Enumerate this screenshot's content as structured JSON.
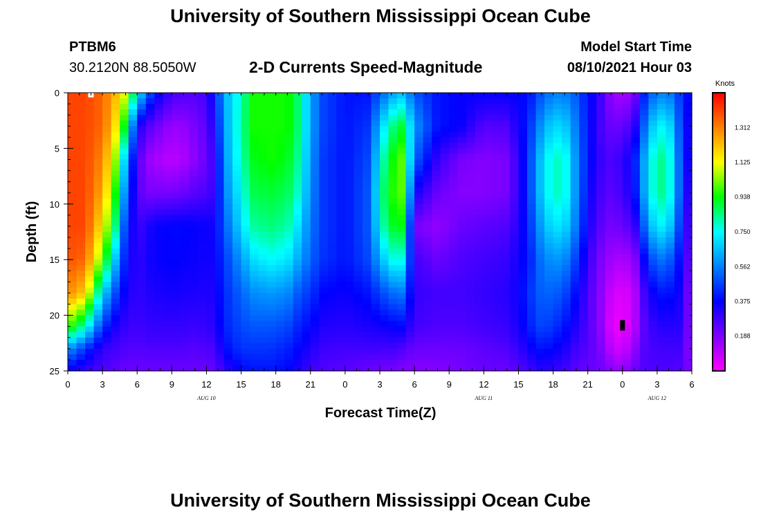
{
  "header": {
    "title_top": "University of Southern Mississippi Ocean Cube",
    "title_bottom": "University of Southern Mississippi Ocean Cube",
    "station_id": "PTBM6",
    "station_coords": "30.2120N  88.5050W",
    "plot_title": "2-D Currents Speed-Magnitude",
    "model_start_label": "Model Start Time",
    "model_start_value": "08/10/2021 Hour 03"
  },
  "colors": {
    "colormap": [
      "#ff00ff",
      "#8000ff",
      "#0000ff",
      "#0080ff",
      "#00ffff",
      "#00ff00",
      "#ffff00",
      "#ff8000",
      "#ff0000"
    ],
    "white_marker": "#ffffff",
    "black_marker": "#000000"
  },
  "chart_data": {
    "type": "heatmap",
    "title": "2-D Currents Speed-Magnitude",
    "xlabel": "Forecast Time(Z)",
    "ylabel": "Depth (ft)",
    "x_range_hours": [
      0,
      54
    ],
    "y_range_ft": [
      0,
      25
    ],
    "y_inverted": true,
    "x_ticks": [
      {
        "hour": 0,
        "label": "0"
      },
      {
        "hour": 3,
        "label": "3"
      },
      {
        "hour": 6,
        "label": "6"
      },
      {
        "hour": 9,
        "label": "9"
      },
      {
        "hour": 12,
        "label": "12"
      },
      {
        "hour": 15,
        "label": "15"
      },
      {
        "hour": 18,
        "label": "18"
      },
      {
        "hour": 21,
        "label": "21"
      },
      {
        "hour": 24,
        "label": "0"
      },
      {
        "hour": 27,
        "label": "3"
      },
      {
        "hour": 30,
        "label": "6"
      },
      {
        "hour": 33,
        "label": "9"
      },
      {
        "hour": 36,
        "label": "12"
      },
      {
        "hour": 39,
        "label": "15"
      },
      {
        "hour": 42,
        "label": "18"
      },
      {
        "hour": 45,
        "label": "21"
      },
      {
        "hour": 48,
        "label": "0"
      },
      {
        "hour": 51,
        "label": "3"
      },
      {
        "hour": 54,
        "label": "6"
      }
    ],
    "y_ticks": [
      {
        "depth": 0,
        "label": "0"
      },
      {
        "depth": 5,
        "label": "5"
      },
      {
        "depth": 10,
        "label": "10"
      },
      {
        "depth": 15,
        "label": "15"
      },
      {
        "depth": 20,
        "label": "20"
      },
      {
        "depth": 25,
        "label": "25"
      }
    ],
    "date_labels": [
      {
        "hour": 12,
        "label": "AUG 10"
      },
      {
        "hour": 36,
        "label": "AUG 11"
      },
      {
        "hour": 51,
        "label": "AUG 12"
      }
    ],
    "colorbar": {
      "unit": "Knots",
      "min": 0.0,
      "max": 1.5,
      "tick_labels": [
        {
          "value": 0.188,
          "label": "0.188"
        },
        {
          "value": 0.375,
          "label": "0.375"
        },
        {
          "value": 0.562,
          "label": "0.562"
        },
        {
          "value": 0.75,
          "label": "0.750"
        },
        {
          "value": 0.938,
          "label": "0.938"
        },
        {
          "value": 1.125,
          "label": "1.125"
        },
        {
          "value": 1.312,
          "label": "1.312"
        }
      ]
    },
    "columns_hour": [
      0,
      1.5,
      3,
      4,
      5,
      6,
      7,
      8,
      9,
      10,
      11,
      12,
      12.7,
      13.5,
      15,
      16,
      17.5,
      19,
      20,
      21,
      22,
      24,
      26,
      27.5,
      28.5,
      29,
      30,
      32,
      34,
      36,
      38,
      39,
      40,
      41,
      42,
      43,
      44,
      45,
      46,
      47,
      48,
      49,
      50,
      51,
      52,
      53,
      54
    ],
    "depth_knots_ft": [
      0,
      3,
      6,
      9,
      12,
      15,
      18,
      21,
      23,
      25
    ],
    "speed_grid_knots": [
      [
        1.4,
        1.4,
        1.4,
        1.4,
        1.4,
        1.38,
        1.3,
        1.0,
        0.6,
        0.35
      ],
      [
        1.4,
        1.4,
        1.4,
        1.4,
        1.4,
        1.35,
        1.2,
        0.8,
        0.45,
        0.3
      ],
      [
        1.35,
        1.35,
        1.3,
        1.25,
        1.15,
        1.0,
        0.7,
        0.45,
        0.3,
        0.26
      ],
      [
        1.25,
        1.2,
        1.1,
        1.0,
        0.9,
        0.7,
        0.5,
        0.35,
        0.28,
        0.24
      ],
      [
        1.1,
        0.9,
        0.65,
        0.55,
        0.45,
        0.4,
        0.35,
        0.3,
        0.26,
        0.22
      ],
      [
        0.75,
        0.35,
        0.26,
        0.25,
        0.28,
        0.3,
        0.3,
        0.28,
        0.25,
        0.22
      ],
      [
        0.5,
        0.25,
        0.15,
        0.2,
        0.34,
        0.35,
        0.33,
        0.3,
        0.26,
        0.22
      ],
      [
        0.35,
        0.2,
        0.12,
        0.2,
        0.37,
        0.37,
        0.34,
        0.3,
        0.26,
        0.22
      ],
      [
        0.28,
        0.15,
        0.1,
        0.2,
        0.38,
        0.38,
        0.35,
        0.3,
        0.26,
        0.22
      ],
      [
        0.26,
        0.16,
        0.12,
        0.22,
        0.38,
        0.37,
        0.34,
        0.3,
        0.26,
        0.22
      ],
      [
        0.25,
        0.2,
        0.17,
        0.25,
        0.37,
        0.36,
        0.34,
        0.29,
        0.25,
        0.22
      ],
      [
        0.28,
        0.24,
        0.22,
        0.26,
        0.36,
        0.35,
        0.33,
        0.3,
        0.26,
        0.22
      ],
      [
        0.4,
        0.35,
        0.3,
        0.3,
        0.36,
        0.36,
        0.34,
        0.32,
        0.27,
        0.23
      ],
      [
        0.62,
        0.6,
        0.58,
        0.55,
        0.5,
        0.45,
        0.43,
        0.42,
        0.38,
        0.3
      ],
      [
        0.8,
        0.82,
        0.8,
        0.75,
        0.7,
        0.6,
        0.52,
        0.48,
        0.45,
        0.38
      ],
      [
        0.95,
        0.95,
        0.92,
        0.88,
        0.82,
        0.7,
        0.58,
        0.5,
        0.45,
        0.4
      ],
      [
        0.95,
        0.95,
        0.95,
        0.9,
        0.85,
        0.75,
        0.6,
        0.5,
        0.45,
        0.4
      ],
      [
        0.95,
        0.95,
        0.92,
        0.88,
        0.82,
        0.72,
        0.58,
        0.48,
        0.42,
        0.38
      ],
      [
        0.85,
        0.85,
        0.82,
        0.78,
        0.7,
        0.62,
        0.5,
        0.42,
        0.38,
        0.33
      ],
      [
        0.62,
        0.62,
        0.6,
        0.58,
        0.55,
        0.52,
        0.45,
        0.38,
        0.33,
        0.28
      ],
      [
        0.48,
        0.48,
        0.46,
        0.46,
        0.46,
        0.45,
        0.38,
        0.33,
        0.29,
        0.26
      ],
      [
        0.4,
        0.4,
        0.4,
        0.4,
        0.4,
        0.4,
        0.36,
        0.32,
        0.28,
        0.24
      ],
      [
        0.4,
        0.45,
        0.48,
        0.5,
        0.5,
        0.48,
        0.4,
        0.34,
        0.28,
        0.22
      ],
      [
        0.55,
        0.75,
        0.85,
        0.9,
        0.85,
        0.7,
        0.5,
        0.36,
        0.28,
        0.2
      ],
      [
        0.65,
        0.9,
        1.0,
        1.0,
        0.95,
        0.8,
        0.55,
        0.38,
        0.28,
        0.2
      ],
      [
        0.65,
        0.9,
        1.0,
        1.0,
        0.92,
        0.75,
        0.55,
        0.38,
        0.26,
        0.18
      ],
      [
        0.5,
        0.6,
        0.52,
        0.35,
        0.2,
        0.28,
        0.3,
        0.28,
        0.22,
        0.18
      ],
      [
        0.4,
        0.4,
        0.3,
        0.22,
        0.16,
        0.22,
        0.28,
        0.26,
        0.22,
        0.18
      ],
      [
        0.37,
        0.37,
        0.2,
        0.18,
        0.22,
        0.26,
        0.28,
        0.26,
        0.22,
        0.2
      ],
      [
        0.37,
        0.25,
        0.18,
        0.18,
        0.24,
        0.28,
        0.3,
        0.28,
        0.24,
        0.22
      ],
      [
        0.37,
        0.26,
        0.2,
        0.2,
        0.26,
        0.3,
        0.32,
        0.3,
        0.26,
        0.22
      ],
      [
        0.37,
        0.35,
        0.3,
        0.3,
        0.32,
        0.35,
        0.36,
        0.34,
        0.3,
        0.25
      ],
      [
        0.4,
        0.45,
        0.48,
        0.48,
        0.45,
        0.42,
        0.45,
        0.42,
        0.36,
        0.28
      ],
      [
        0.5,
        0.6,
        0.68,
        0.68,
        0.62,
        0.55,
        0.52,
        0.48,
        0.4,
        0.32
      ],
      [
        0.56,
        0.7,
        0.8,
        0.8,
        0.72,
        0.6,
        0.52,
        0.45,
        0.38,
        0.3
      ],
      [
        0.56,
        0.68,
        0.78,
        0.78,
        0.7,
        0.58,
        0.48,
        0.4,
        0.34,
        0.28
      ],
      [
        0.5,
        0.55,
        0.58,
        0.58,
        0.55,
        0.46,
        0.38,
        0.33,
        0.28,
        0.24
      ],
      [
        0.4,
        0.4,
        0.4,
        0.38,
        0.35,
        0.3,
        0.27,
        0.26,
        0.25,
        0.22
      ],
      [
        0.3,
        0.28,
        0.3,
        0.28,
        0.25,
        0.2,
        0.18,
        0.18,
        0.2,
        0.22
      ],
      [
        0.16,
        0.22,
        0.26,
        0.24,
        0.2,
        0.14,
        0.08,
        0.05,
        0.1,
        0.18
      ],
      [
        0.12,
        0.22,
        0.3,
        0.28,
        0.22,
        0.12,
        0.04,
        0.02,
        0.06,
        0.15
      ],
      [
        0.18,
        0.3,
        0.4,
        0.38,
        0.28,
        0.16,
        0.1,
        0.1,
        0.16,
        0.22
      ],
      [
        0.45,
        0.55,
        0.65,
        0.65,
        0.55,
        0.4,
        0.3,
        0.26,
        0.26,
        0.26
      ],
      [
        0.56,
        0.75,
        0.85,
        0.85,
        0.75,
        0.55,
        0.4,
        0.32,
        0.28,
        0.26
      ],
      [
        0.56,
        0.72,
        0.8,
        0.8,
        0.7,
        0.52,
        0.4,
        0.32,
        0.28,
        0.26
      ],
      [
        0.45,
        0.48,
        0.5,
        0.5,
        0.45,
        0.38,
        0.35,
        0.32,
        0.28,
        0.25
      ],
      [
        0.35,
        0.28,
        0.28,
        0.22,
        0.2,
        0.18,
        0.15,
        0.15,
        0.15,
        0.18
      ]
    ],
    "markers": [
      {
        "hour": 2.0,
        "depth": 0.2,
        "color": "white"
      },
      {
        "hour": 48.0,
        "depth": 20.9,
        "color": "black"
      }
    ]
  }
}
